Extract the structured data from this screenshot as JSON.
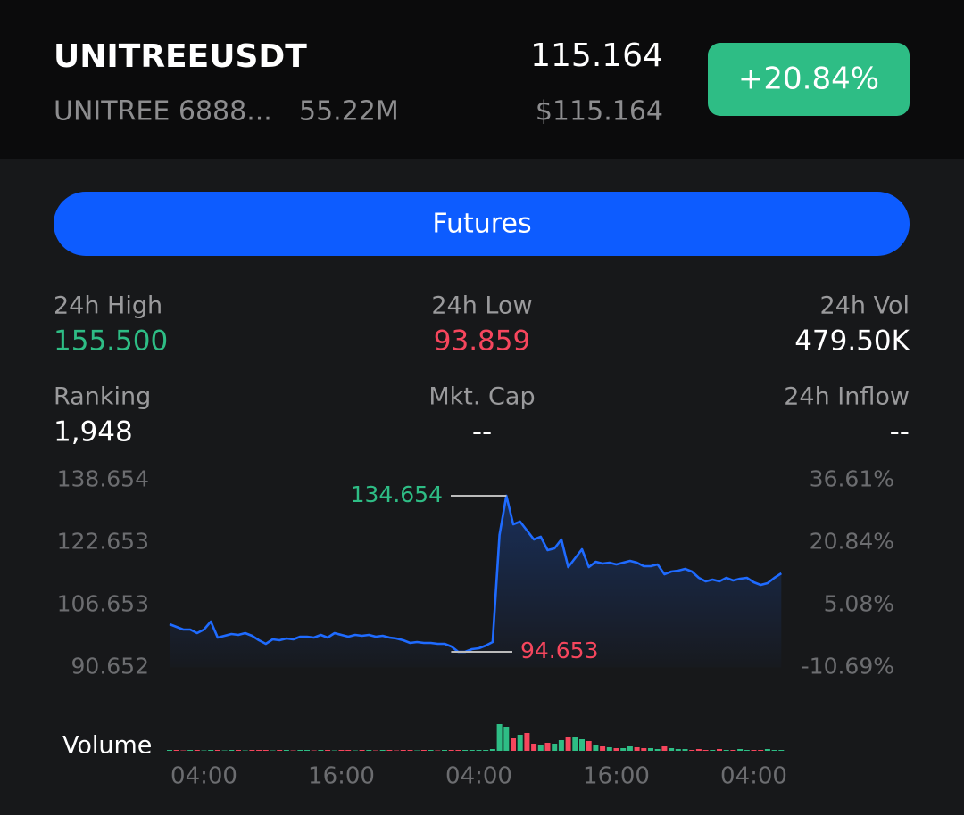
{
  "header": {
    "symbol": "UNITREEUSDT",
    "name": "UNITREE 6888...",
    "volume": "55.22M",
    "price": "115.164",
    "price_usd": "$115.164",
    "change": "+20.84%"
  },
  "button": "Futures",
  "stats": [
    {
      "label": "24h High",
      "value": "155.500"
    },
    {
      "label": "24h Low",
      "value": "93.859"
    },
    {
      "label": "24h Vol",
      "value": "479.50K"
    },
    {
      "label": "Ranking",
      "value": "1,948"
    },
    {
      "label": "Mkt. Cap",
      "value": "--"
    },
    {
      "label": "24h Inflow",
      "value": "--"
    }
  ],
  "chart_data": {
    "type": "line",
    "categories": [
      null,
      null,
      null,
      null,
      null,
      "04:00",
      null,
      null,
      null,
      null,
      null,
      null,
      null,
      null,
      null,
      null,
      null,
      null,
      null,
      null,
      null,
      null,
      null,
      null,
      null,
      "16:00",
      null,
      null,
      null,
      null,
      null,
      null,
      null,
      null,
      null,
      null,
      null,
      null,
      null,
      null,
      null,
      null,
      null,
      null,
      null,
      "04:00",
      null,
      null,
      null,
      null,
      null,
      null,
      null,
      null,
      null,
      null,
      null,
      null,
      null,
      null,
      null,
      null,
      null,
      null,
      null,
      "16:00",
      null,
      null,
      null,
      null,
      null,
      null,
      null,
      null,
      null,
      null,
      null,
      null,
      null,
      null,
      null,
      null,
      null,
      null,
      null,
      "04:00",
      null,
      null,
      null,
      null
    ],
    "series": [
      {
        "color": "#1f6bff",
        "values": [
          101.74,
          101.05,
          100.37,
          100.37,
          99.45,
          100.37,
          102.43,
          98.31,
          98.77,
          99.23,
          99.0,
          99.45,
          98.77,
          97.63,
          96.71,
          97.85,
          97.63,
          98.08,
          97.85,
          98.54,
          98.54,
          98.31,
          99.0,
          98.31,
          99.45,
          99.0,
          98.54,
          99.0,
          98.77,
          99.0,
          98.54,
          98.77,
          98.31,
          98.08,
          97.63,
          96.94,
          97.17,
          96.94,
          96.94,
          96.71,
          96.71,
          96.02,
          94.653,
          94.653,
          95.34,
          95.57,
          96.25,
          97.17,
          124.6,
          134.654,
          127.34,
          128.03,
          125.74,
          123.46,
          124.14,
          120.71,
          121.17,
          123.46,
          116.37,
          118.65,
          120.94,
          116.37,
          117.74,
          117.28,
          117.51,
          117.06,
          117.51,
          117.97,
          117.51,
          116.6,
          116.6,
          117.06,
          114.54,
          115.23,
          115.46,
          115.91,
          115.23,
          113.63,
          112.71,
          113.17,
          112.71,
          113.63,
          112.94,
          113.4,
          113.63,
          112.48,
          111.8,
          112.26,
          113.63,
          114.77
        ]
      }
    ],
    "ylim": [
      90.652,
      138.654
    ],
    "yticks": [
      138.654,
      122.653,
      106.653,
      90.652
    ],
    "y2lim": [
      -10.69,
      36.61
    ],
    "y2ticks": [
      {
        "value": 36.61,
        "label": "36.61%"
      },
      {
        "value": 20.84,
        "label": "20.84%"
      },
      {
        "value": 5.08,
        "label": "5.08%"
      },
      {
        "value": -10.69,
        "label": "-10.69%"
      }
    ],
    "max_label": 134.654,
    "min_label": 94.653,
    "volume": {
      "name": "Volume",
      "ylim": [
        0,
        30
      ],
      "up_color": "#2ebd85",
      "down_color": "#f6465d",
      "values": [
        1,
        1,
        0.5,
        1,
        1,
        0.5,
        1,
        1,
        0.5,
        1,
        1,
        0.5,
        1,
        1,
        1,
        0.5,
        1,
        1,
        0.5,
        1,
        1,
        0.5,
        1,
        1,
        0.5,
        1,
        1,
        0.5,
        1,
        1,
        0.5,
        1,
        1,
        0.5,
        1,
        1,
        0.5,
        1,
        1,
        0.5,
        1,
        1,
        1,
        1,
        1,
        1,
        1,
        2,
        30,
        27,
        14,
        18,
        20,
        8,
        6,
        9,
        8,
        12,
        16,
        15,
        13,
        11,
        6,
        5,
        4,
        3,
        3,
        5,
        4,
        3,
        3,
        2,
        5,
        3,
        2,
        2,
        1,
        2,
        1,
        1,
        2,
        1,
        1,
        2,
        1,
        1,
        1,
        2,
        1,
        1
      ]
    }
  }
}
